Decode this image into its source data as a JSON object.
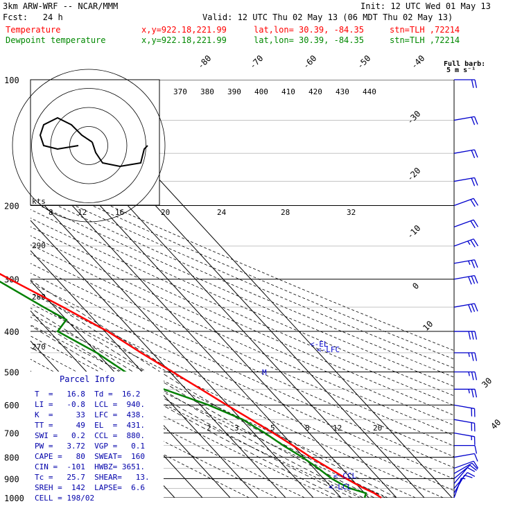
{
  "header": {
    "model": "3km ARW-WRF -- NCAR/MMM",
    "init": "Init: 12 UTC Wed 01 May 13",
    "fcst": "Fcst:   24 h",
    "valid": "Valid: 12 UTC Thu 02 May 13 (06 MDT Thu 02 May 13)",
    "temp_label": "Temperature",
    "dew_label": "Dewpoint temperature",
    "xy": "x,y=922.18,221.99",
    "latlon": "lat,lon= 30.39, -84.35",
    "stn": "stn=TLH ,72214"
  },
  "barb_legend": {
    "line1": "Full barb:",
    "line2": "5 m s⁻¹"
  },
  "pressure_labels": [
    "100",
    "200",
    "300",
    "400",
    "500",
    "600",
    "700",
    "800",
    "900",
    "1000"
  ],
  "isotherm_labels_top": [
    "-80",
    "-70",
    "-60",
    "-50",
    "-40"
  ],
  "isotherm_labels_right": [
    "-30",
    "-20",
    "-10",
    "0",
    "10",
    "30",
    "40"
  ],
  "theta_e_labels": [
    "370",
    "380",
    "390",
    "400",
    "410",
    "420",
    "430",
    "440"
  ],
  "theta_labels": [
    "290",
    "280",
    "270"
  ],
  "mixing_ratio_labels": [
    "2",
    "3",
    "5",
    "8",
    "12",
    "20"
  ],
  "hodograph": {
    "units_label": "kts",
    "ring_labels": [
      "8",
      "12",
      "16",
      "20",
      "24",
      "28",
      "32"
    ]
  },
  "level_markers": {
    "el": "<-EL",
    "lfc": "<-LFC",
    "ccl": "<-CCL",
    "lcl": "<-LCL",
    "mid": "M"
  },
  "parcel_info": {
    "title": "Parcel Info",
    "rows": [
      "T  =   16.8  Td =  16.2",
      "LI =   -0.8  LCL =  940.",
      "K  =     33  LFC =  438.",
      "TT =     49  EL  =  431.",
      "SWI =   0.2  CCL =  880.",
      "PW =   3.72  VGP =   0.1",
      "CAPE =   80  SWEAT=  160",
      "CIN =  -101  HWBZ= 3651.",
      "Tc =   25.7  SHEAR=   13.",
      "SREH =  142  LAPSE=  6.6",
      "CELL = 198/02"
    ]
  },
  "chart_data": {
    "type": "line",
    "title": "",
    "xlabel": "",
    "ylabel": "",
    "y_axis": "pressure (hPa), log scale",
    "ylim": [
      1000,
      100
    ],
    "series": [
      {
        "name": "Temperature",
        "color": "#ff0000",
        "points": [
          {
            "p": 1000,
            "t": 24.5
          },
          {
            "p": 975,
            "t": 23.5
          },
          {
            "p": 950,
            "t": 21.5
          },
          {
            "p": 925,
            "t": 19.8
          },
          {
            "p": 900,
            "t": 18.2
          },
          {
            "p": 850,
            "t": 15.5
          },
          {
            "p": 800,
            "t": 12.5
          },
          {
            "p": 750,
            "t": 10.0
          },
          {
            "p": 700,
            "t": 7.0
          },
          {
            "p": 650,
            "t": 3.5
          },
          {
            "p": 600,
            "t": -0.5
          },
          {
            "p": 550,
            "t": -4.5
          },
          {
            "p": 500,
            "t": -9.0
          },
          {
            "p": 450,
            "t": -14.0
          },
          {
            "p": 400,
            "t": -19.0
          },
          {
            "p": 350,
            "t": -27.0
          },
          {
            "p": 300,
            "t": -37.0
          },
          {
            "p": 250,
            "t": -48.0
          },
          {
            "p": 225,
            "t": -53.0
          },
          {
            "p": 200,
            "t": -57.0
          },
          {
            "p": 175,
            "t": -62.0
          },
          {
            "p": 150,
            "t": -66.5
          },
          {
            "p": 125,
            "t": -70.0
          },
          {
            "p": 100,
            "t": -76.0
          }
        ]
      },
      {
        "name": "Dewpoint temperature",
        "color": "#008000",
        "points": [
          {
            "p": 1000,
            "t": 18.5
          },
          {
            "p": 975,
            "t": 20.5
          },
          {
            "p": 950,
            "t": 16.5
          },
          {
            "p": 925,
            "t": 14.5
          },
          {
            "p": 900,
            "t": 13.0
          },
          {
            "p": 850,
            "t": 11.5
          },
          {
            "p": 800,
            "t": 9.5
          },
          {
            "p": 750,
            "t": 6.5
          },
          {
            "p": 700,
            "t": 4.0
          },
          {
            "p": 650,
            "t": 0.5
          },
          {
            "p": 600,
            "t": -7.0
          },
          {
            "p": 550,
            "t": -18.0
          },
          {
            "p": 500,
            "t": -26.0
          },
          {
            "p": 450,
            "t": -30.0
          },
          {
            "p": 400,
            "t": -37.0
          },
          {
            "p": 375,
            "t": -30.0
          },
          {
            "p": 350,
            "t": -34.0
          },
          {
            "p": 300,
            "t": -42.0
          },
          {
            "p": 250,
            "t": -53.0
          },
          {
            "p": 200,
            "t": -64.0
          },
          {
            "p": 175,
            "t": -72.0
          },
          {
            "p": 150,
            "t": -80.0
          },
          {
            "p": 125,
            "t": -85.0
          },
          {
            "p": 100,
            "t": -90.0
          }
        ]
      }
    ],
    "wind_barbs": [
      {
        "p": 1000,
        "dir": 200,
        "kt": 8
      },
      {
        "p": 975,
        "dir": 210,
        "kt": 10
      },
      {
        "p": 950,
        "dir": 220,
        "kt": 10
      },
      {
        "p": 925,
        "dir": 220,
        "kt": 10
      },
      {
        "p": 900,
        "dir": 230,
        "kt": 10
      },
      {
        "p": 875,
        "dir": 240,
        "kt": 10
      },
      {
        "p": 850,
        "dir": 250,
        "kt": 10
      },
      {
        "p": 800,
        "dir": 260,
        "kt": 10
      },
      {
        "p": 750,
        "dir": 270,
        "kt": 10
      },
      {
        "p": 700,
        "dir": 280,
        "kt": 15
      },
      {
        "p": 650,
        "dir": 280,
        "kt": 20
      },
      {
        "p": 600,
        "dir": 280,
        "kt": 20
      },
      {
        "p": 550,
        "dir": 270,
        "kt": 25
      },
      {
        "p": 500,
        "dir": 270,
        "kt": 25
      },
      {
        "p": 450,
        "dir": 270,
        "kt": 25
      },
      {
        "p": 400,
        "dir": 270,
        "kt": 30
      },
      {
        "p": 350,
        "dir": 260,
        "kt": 30
      },
      {
        "p": 300,
        "dir": 260,
        "kt": 30
      },
      {
        "p": 275,
        "dir": 260,
        "kt": 25
      },
      {
        "p": 250,
        "dir": 250,
        "kt": 25
      },
      {
        "p": 225,
        "dir": 250,
        "kt": 20
      },
      {
        "p": 200,
        "dir": 250,
        "kt": 20
      },
      {
        "p": 175,
        "dir": 260,
        "kt": 20
      },
      {
        "p": 150,
        "dir": 260,
        "kt": 20
      },
      {
        "p": 125,
        "dir": 260,
        "kt": 20
      },
      {
        "p": 100,
        "dir": 270,
        "kt": 20
      }
    ],
    "hodograph_trace": [
      {
        "u": 1,
        "v": 1
      },
      {
        "u": 2,
        "v": -2
      },
      {
        "u": 4,
        "v": -5
      },
      {
        "u": 9,
        "v": -6
      },
      {
        "u": 15,
        "v": -5
      },
      {
        "u": 16,
        "v": -1
      },
      {
        "u": 17,
        "v": 0
      }
    ],
    "hodograph_trace_2": [
      {
        "u": 1,
        "v": 1
      },
      {
        "u": -2,
        "v": 3
      },
      {
        "u": -5,
        "v": 6
      },
      {
        "u": -9,
        "v": 8
      },
      {
        "u": -13,
        "v": 6
      },
      {
        "u": -14,
        "v": 3
      },
      {
        "u": -13,
        "v": 0
      },
      {
        "u": -9,
        "v": -1
      },
      {
        "u": -3,
        "v": 0
      }
    ]
  }
}
